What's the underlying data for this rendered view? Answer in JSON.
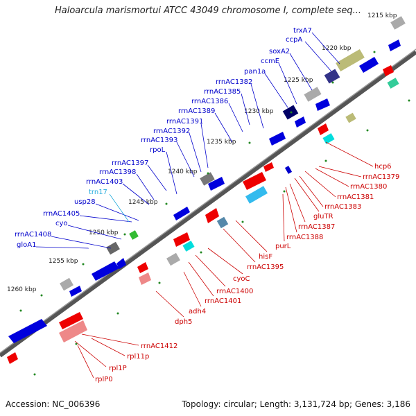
{
  "title": "Haloarcula marismortui ATCC 43049 chromosome I, complete seq...",
  "footer": {
    "accession": "Accession: NC_006396",
    "summary": "Topology: circular; Length: 3,131,724 bp; Genes: 3,186"
  },
  "colors": {
    "forward": "#0000dd",
    "reverse": "#ee0000",
    "label_forward": "#0000cc",
    "label_reverse": "#cc0000",
    "trna": "#22aadd",
    "backbone": "#555555",
    "tick_dot": "#228822"
  },
  "kbp_labels": [
    "1220 kbp",
    "1225 kbp",
    "1230 kbp",
    "1235 kbp",
    "1240 kbp",
    "1245 kbp",
    "1250 kbp",
    "1255 kbp",
    "1260 kbp",
    "1215 kbp"
  ],
  "forward_labels": [
    "trxA7",
    "ccpA",
    "soxA2",
    "ccmE",
    "pan1a",
    "rrnAC1382",
    "rrnAC1385",
    "rrnAC1386",
    "rrnAC1389",
    "rrnAC1391",
    "rrnAC1392",
    "rrnAC1393",
    "rpoL",
    "rrnAC1397",
    "rrnAC1398",
    "rrnAC1403",
    "usp28",
    "rrnAC1405",
    "cyo",
    "rrnAC1408",
    "gloA1"
  ],
  "trna_labels": [
    "trn17"
  ],
  "reverse_labels": [
    "hcp6",
    "rrnAC1379",
    "rrnAC1380",
    "rrnAC1381",
    "rrnAC1383",
    "gluTR",
    "rrnAC1387",
    "rrnAC1388",
    "purL",
    "hisF",
    "rrnAC1395",
    "cyoC",
    "rrnAC1400",
    "rrnAC1401",
    "adh4",
    "dph5",
    "rrnAC1412",
    "rpl11p",
    "rpl1P",
    "rplP0"
  ]
}
